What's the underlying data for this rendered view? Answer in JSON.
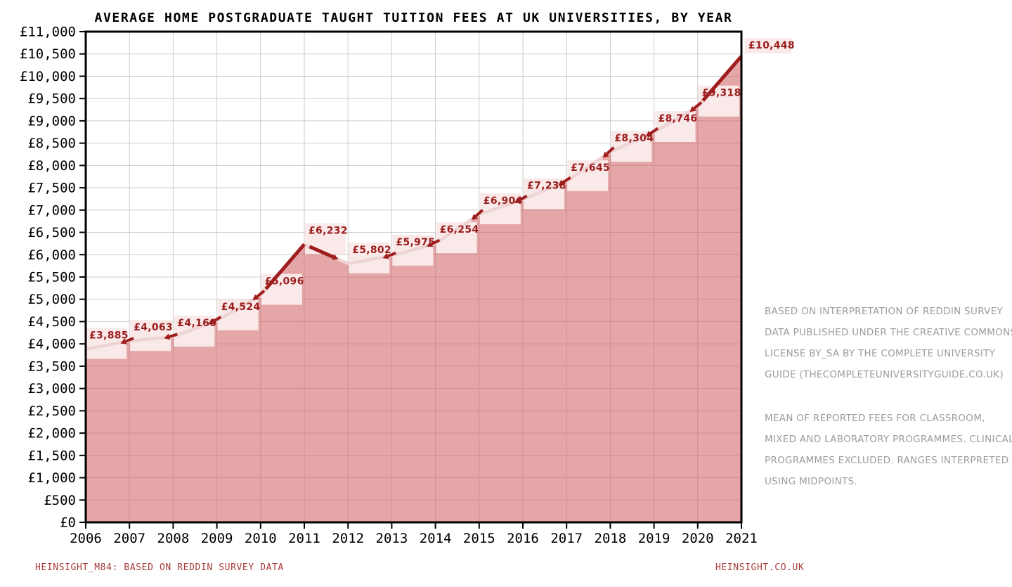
{
  "page": {
    "footer_left": "HEINSIGHT_M84: BASED ON REDDIN SURVEY DATA",
    "footer_right": "HEINSIGHT.CO.UK"
  },
  "side_notes": {
    "block1_lines": [
      "BASED ON INTERPRETATION OF REDDIN SURVEY",
      "DATA PUBLISHED UNDER THE CREATIVE COMMONS",
      "LICENSE BY_SA BY THE COMPLETE UNIVERSITY",
      "GUIDE (THECOMPLETEUNIVERSITYGUIDE.CO.UK)"
    ],
    "block2_lines": [
      "MEAN OF REPORTED FEES FOR CLASSROOM,",
      "MIXED AND LABORATORY PROGRAMMES. CLINICAL",
      "PROGRAMMES EXCLUDED. RANGES INTERPRETED",
      "USING MIDPOINTS."
    ]
  },
  "chart_data": {
    "type": "area",
    "title": "AVERAGE HOME POSTGRADUATE TAUGHT TUITION FEES AT UK UNIVERSITIES, BY YEAR",
    "categories": [
      "2006",
      "2007",
      "2008",
      "2009",
      "2010",
      "2011",
      "2012",
      "2013",
      "2014",
      "2015",
      "2016",
      "2017",
      "2018",
      "2019",
      "2020",
      "2021"
    ],
    "values": [
      3885,
      4063,
      4160,
      4524,
      5096,
      6232,
      5802,
      5975,
      6254,
      6904,
      7238,
      7645,
      8304,
      8746,
      9318,
      10448
    ],
    "point_labels": [
      "£3,885",
      "£4,063",
      "£4,160",
      "£4,524",
      "£5,096",
      "£6,232",
      "£5,802",
      "£5,975",
      "£6,254",
      "£6,904",
      "£7,238",
      "£7,645",
      "£8,304",
      "£8,746",
      "£9,318",
      "£10,448"
    ],
    "xlabel": "",
    "ylabel": "",
    "ylim": [
      0,
      11000
    ],
    "y_tick_step": 500,
    "y_tick_labels": [
      "£0",
      "£500",
      "£1,000",
      "£1,500",
      "£2,000",
      "£2,500",
      "£3,000",
      "£3,500",
      "£4,000",
      "£4,500",
      "£5,000",
      "£5,500",
      "£6,000",
      "£6,500",
      "£7,000",
      "£7,500",
      "£8,000",
      "£8,500",
      "£9,000",
      "£9,500",
      "£10,000",
      "£10,500",
      "£11,000"
    ],
    "grid": true,
    "legend": "none",
    "highlight_segments": [
      [
        4,
        5
      ],
      [
        5,
        6
      ],
      [
        14,
        15
      ]
    ],
    "point_arrow_indices": [
      1,
      2,
      3,
      4,
      7,
      8,
      9,
      10,
      11,
      12,
      13,
      14
    ],
    "colors": {
      "area_fill": "#cd5c5c",
      "area_opacity": 0.55,
      "line": "#eed4d4",
      "highlight": "#a01d1d",
      "label_bg": "#f9e9e9",
      "label_text": "#9b1c1c",
      "grid": "#cdcdcd",
      "axis": "#000000"
    }
  }
}
